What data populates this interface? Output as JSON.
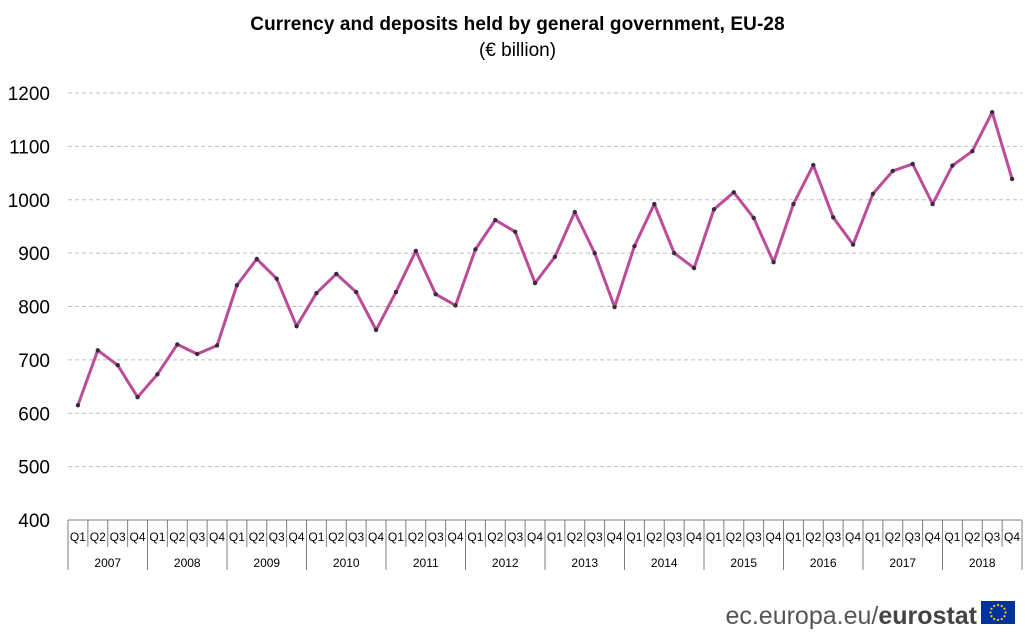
{
  "header": {
    "title": "Currency and deposits held by general government, EU-28",
    "subtitle": "(€ billion)"
  },
  "footer": {
    "source_text": "ec.europa.eu/",
    "brand": "eurostat"
  },
  "colors": {
    "line": "#BC4B9A",
    "marker": "#3A2A3A",
    "grid": "#BFBFBF",
    "axis": "#7F7F7F",
    "flag_blue": "#003399",
    "flag_star": "#FFCC00"
  },
  "chart_data": {
    "type": "line",
    "title": "Currency and deposits held by general government, EU-28",
    "subtitle": "(€ billion)",
    "ylim": [
      400,
      1200
    ],
    "yticks": [
      400,
      500,
      600,
      700,
      800,
      900,
      1000,
      1100,
      1200
    ],
    "grid": true,
    "quarters": [
      "Q1",
      "Q2",
      "Q3",
      "Q4"
    ],
    "years": [
      "2007",
      "2008",
      "2009",
      "2010",
      "2011",
      "2012",
      "2013",
      "2014",
      "2015",
      "2016",
      "2017",
      "2018"
    ],
    "series": [
      {
        "values": [
          615,
          718,
          690,
          630,
          673,
          729,
          711,
          727,
          840,
          889,
          852,
          763,
          825,
          861,
          827,
          756,
          827,
          904,
          823,
          802,
          907,
          962,
          940,
          844,
          893,
          977,
          900,
          799,
          913,
          992,
          900,
          872,
          982,
          1014,
          966,
          883,
          992,
          1065,
          967,
          916,
          1011,
          1054,
          1067,
          992,
          1064,
          1091,
          1164,
          1039
        ]
      }
    ]
  }
}
